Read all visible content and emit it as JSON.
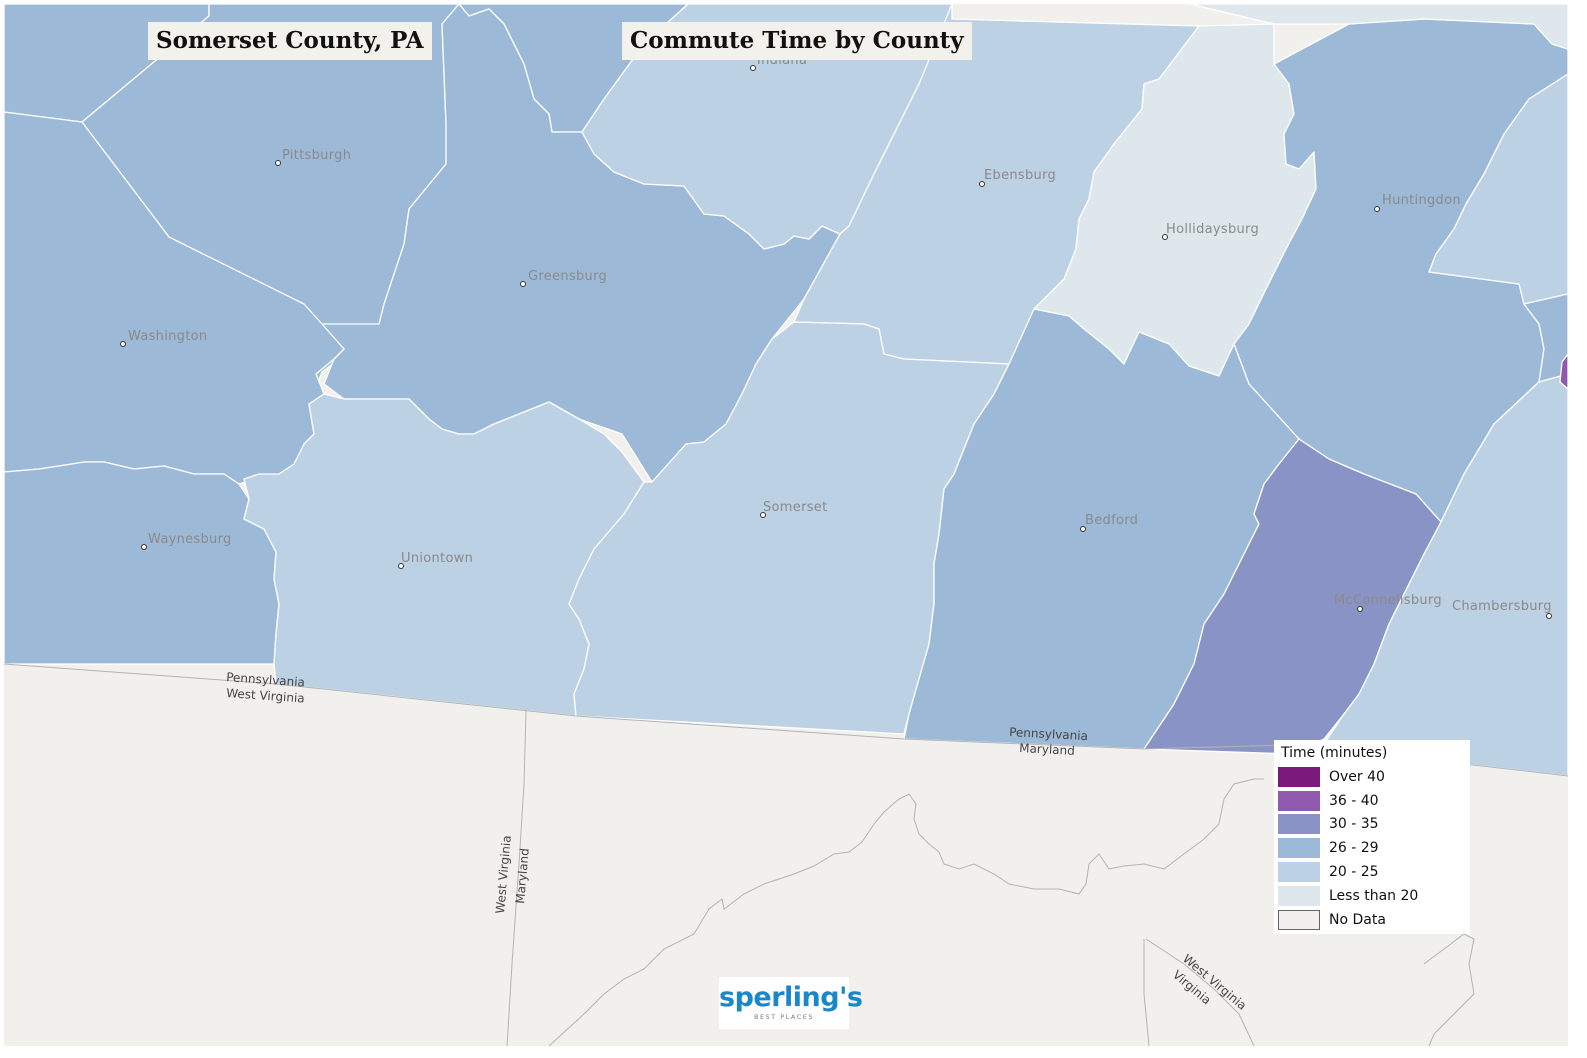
{
  "region_title": "Somerset County, PA",
  "map_title": "Commute Time by County",
  "legend": {
    "title": "Time  (minutes)",
    "items": [
      {
        "label": "Over 40",
        "color": "#7b1a7c"
      },
      {
        "label": "36 - 40",
        "color": "#8f5aad"
      },
      {
        "label": "30 - 35",
        "color": "#8a93c6"
      },
      {
        "label": "26 - 29",
        "color": "#9db9d8"
      },
      {
        "label": "20 - 25",
        "color": "#bdd1e4"
      },
      {
        "label": "Less than 20",
        "color": "#dde7ec"
      },
      {
        "label": "No Data",
        "color": "#f1f0ec"
      }
    ]
  },
  "cities": {
    "indiana": "Indiana",
    "pittsburgh": "Pittsburgh",
    "greensburg": "Greensburg",
    "washington": "Washington",
    "waynesburg": "Waynesburg",
    "uniontown": "Uniontown",
    "somerset": "Somerset",
    "ebensburg": "Ebensburg",
    "hollidaysburg": "Hollidaysburg",
    "huntingdon": "Huntingdon",
    "bedford": "Bedford",
    "mcconnellsburg": "McConnellsburg",
    "chambersburg": "Chambersburg"
  },
  "border_labels": {
    "pa_wv_pa": "Pennsylvania",
    "pa_wv_wv": "West Virginia",
    "pa_md_pa": "Pennsylvania",
    "pa_md_md": "Maryland",
    "wv_md_wv": "West Virginia",
    "wv_md_md": "Maryland",
    "wv_va_wv": "West Virginia",
    "wv_va_va": "Virginia"
  },
  "logo": {
    "word": "sperling's",
    "sub": "BEST PLACES"
  }
}
